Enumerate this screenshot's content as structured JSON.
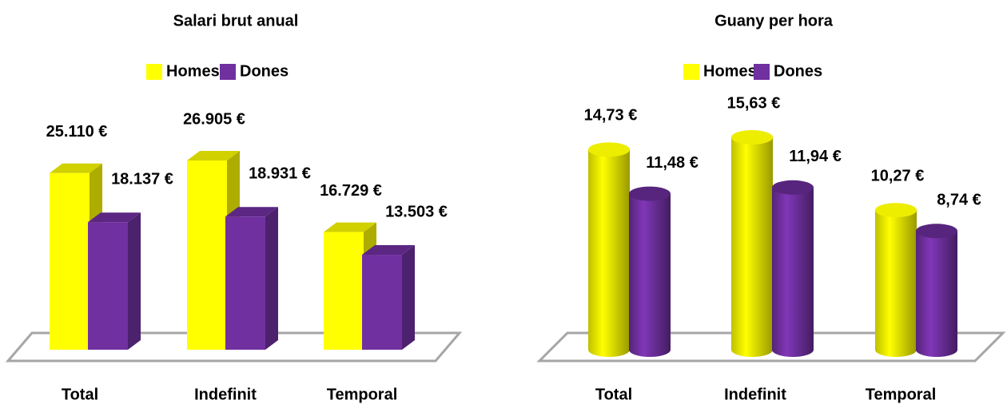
{
  "chart_data": [
    {
      "type": "bar3d",
      "title": "Salari brut anual",
      "categories": [
        "Total",
        "Indefinit",
        "Temporal"
      ],
      "series": [
        {
          "name": "Homes",
          "color": "#ffff00",
          "values": [
            25110,
            26905,
            16729
          ],
          "value_labels": [
            "25.110 €",
            "26.905 €",
            "16.729 €"
          ]
        },
        {
          "name": "Dones",
          "color": "#7030a0",
          "values": [
            18137,
            18931,
            13503
          ],
          "value_labels": [
            "18.137 €",
            "18.931 €",
            "13.503 €"
          ]
        }
      ]
    },
    {
      "type": "cylinder",
      "title": "Guany per hora",
      "categories": [
        "Total",
        "Indefinit",
        "Temporal"
      ],
      "series": [
        {
          "name": "Homes",
          "color": "#ffff00",
          "values": [
            14.73,
            15.63,
            10.27
          ],
          "value_labels": [
            "14,73 €",
            "15,63 €",
            "10,27 €"
          ]
        },
        {
          "name": "Dones",
          "color": "#7030a0",
          "values": [
            11.48,
            11.94,
            8.74
          ],
          "value_labels": [
            "11,48 €",
            "11,94 €",
            "8,74 €"
          ]
        }
      ]
    }
  ]
}
